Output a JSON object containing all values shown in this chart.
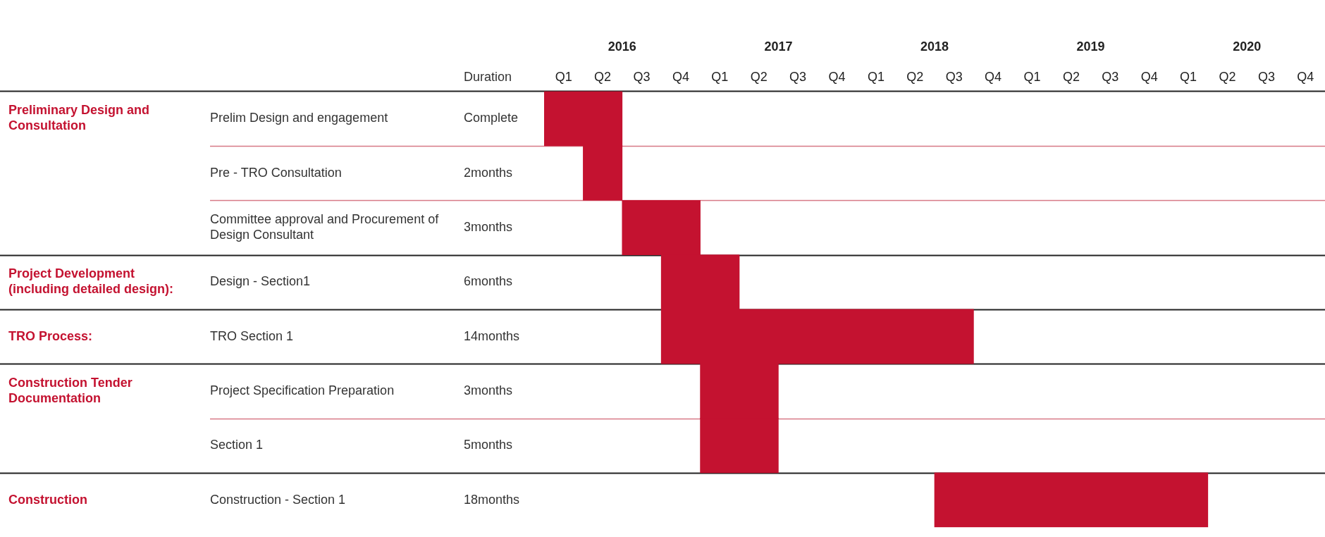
{
  "chart_data": {
    "type": "bar",
    "orientation": "horizontal",
    "categories": [
      "Prelim Design and engagement",
      "Pre - TRO Consultation",
      "Committee approval and Procurement of Design Consultant",
      "Design - Section1",
      "TRO Section 1",
      "Project Specification Preparation",
      "Section 1",
      "Construction - Section 1"
    ],
    "base": [
      2015.5,
      2015.75,
      2016,
      2016.25,
      2016.25,
      2016.5,
      2016.5,
      2018
    ],
    "values": [
      0.5,
      0.25,
      0.5,
      0.5,
      2,
      0.5,
      0.5,
      1.75
    ],
    "color": "#c41230",
    "xlim": [
      2015.5,
      2020.5
    ],
    "xticks": [
      2016,
      2017,
      2018,
      2019,
      2020
    ],
    "grid": "y",
    "annotations": [
      "Duration",
      "Complete",
      "2months",
      "3months",
      "6months",
      "14months",
      "3months",
      "5months",
      "18months",
      "Preliminary Design and Consultation",
      "Project Development (including detailed design):",
      "TRO Process:",
      "Construction Tender Documentation",
      "Construction",
      "Q1",
      "Q2",
      "Q3",
      "Q4",
      "Q1",
      "Q2",
      "Q3",
      "Q4",
      "Q1",
      "Q2",
      "Q3",
      "Q4",
      "Q1",
      "Q2",
      "Q3",
      "Q4",
      "Q1",
      "Q2",
      "Q3",
      "Q4"
    ]
  }
}
